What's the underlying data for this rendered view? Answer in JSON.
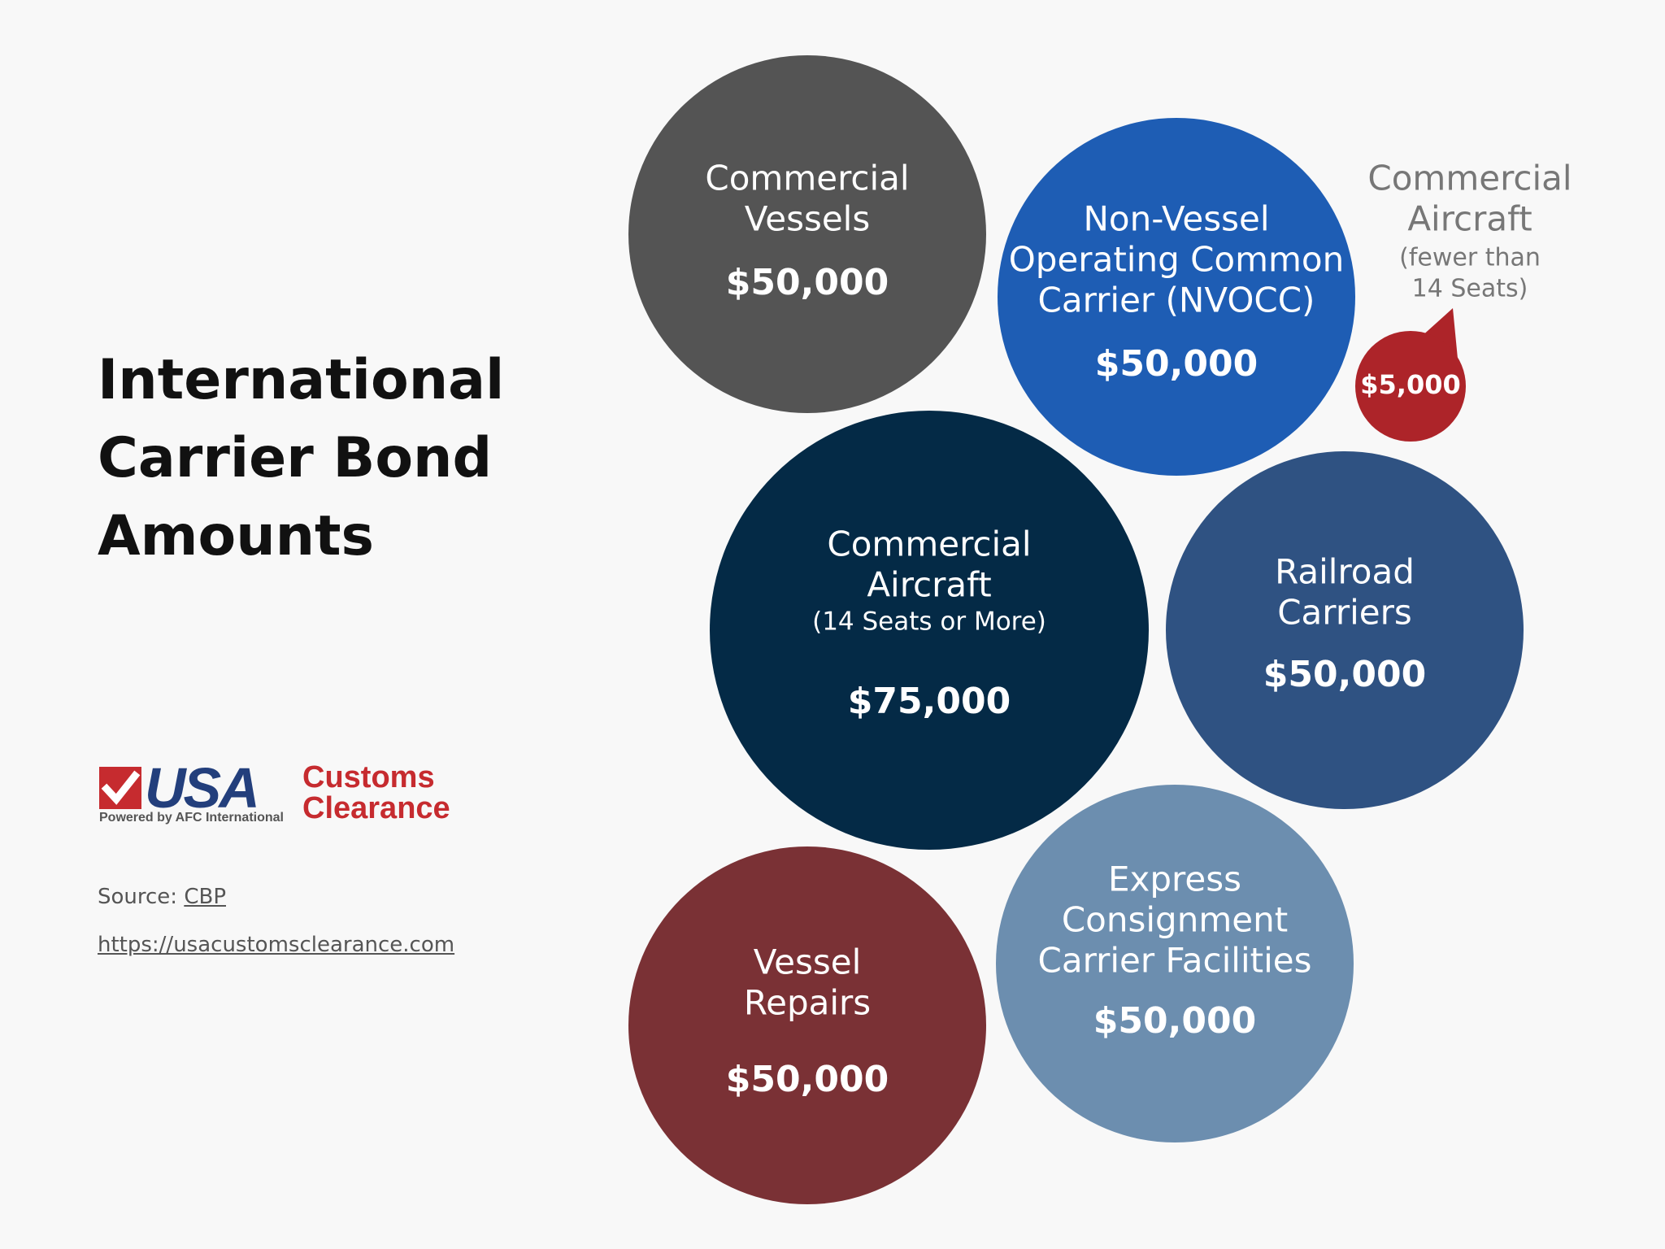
{
  "title_lines": [
    "International",
    "Carrier Bond",
    "Amounts"
  ],
  "logo": {
    "wordmark": "USA",
    "subline": "Powered by AFC International",
    "brand_lines": [
      "Customs",
      "Clearance"
    ]
  },
  "source": {
    "label": "Source:",
    "link_text": "CBP"
  },
  "website": "https://usacustomsclearance.com",
  "chart_data": {
    "type": "bubble",
    "title": "International Carrier Bond Amounts",
    "unit": "$",
    "items": [
      {
        "label_lines": [
          "Commercial",
          "Vessels"
        ],
        "sublabel_lines": [],
        "value": 50000,
        "value_label": "$50,000",
        "color": "#545454"
      },
      {
        "label_lines": [
          "Non-Vessel",
          "Operating Common",
          "Carrier (NVOCC)"
        ],
        "sublabel_lines": [],
        "value": 50000,
        "value_label": "$50,000",
        "color": "#1e5db4"
      },
      {
        "label_lines": [
          "Commercial",
          "Aircraft"
        ],
        "sublabel_lines": [
          "(fewer than",
          "14 Seats)"
        ],
        "value": 5000,
        "value_label": "$5,000",
        "color": "#ad2429"
      },
      {
        "label_lines": [
          "Commercial",
          "Aircraft"
        ],
        "sublabel_lines": [
          "(14 Seats or More)"
        ],
        "value": 75000,
        "value_label": "$75,000",
        "color": "#042a46"
      },
      {
        "label_lines": [
          "Railroad",
          "Carriers"
        ],
        "sublabel_lines": [],
        "value": 50000,
        "value_label": "$50,000",
        "color": "#2f5282"
      },
      {
        "label_lines": [
          "Vessel",
          "Repairs"
        ],
        "sublabel_lines": [],
        "value": 50000,
        "value_label": "$50,000",
        "color": "#7a3135"
      },
      {
        "label_lines": [
          "Express",
          "Consignment",
          "Carrier Facilities"
        ],
        "sublabel_lines": [],
        "value": 50000,
        "value_label": "$50,000",
        "color": "#6c8eaf"
      }
    ]
  }
}
